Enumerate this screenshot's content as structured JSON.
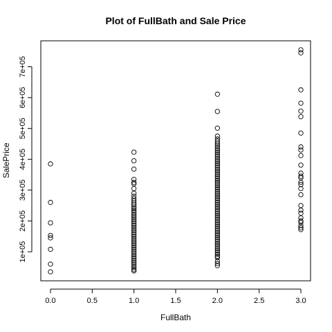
{
  "chart_data": {
    "type": "scatter",
    "title": "Plot of FullBath and Sale Price",
    "xlabel": "FullBath",
    "ylabel": "SalePrice",
    "xlim": [
      0,
      3
    ],
    "ylim": [
      35000,
      755000
    ],
    "x_ticks": [
      0.0,
      0.5,
      1.0,
      1.5,
      2.0,
      2.5,
      3.0
    ],
    "x_tick_labels": [
      "0.0",
      "0.5",
      "1.0",
      "1.5",
      "2.0",
      "2.5",
      "3.0"
    ],
    "y_ticks": [
      100000,
      200000,
      300000,
      400000,
      500000,
      600000,
      700000
    ],
    "y_tick_labels": [
      "1e+05",
      "2e+05",
      "3e+05",
      "4e+05",
      "5e+05",
      "6e+05",
      "7e+05"
    ],
    "grid": false,
    "legend": "none",
    "marker": "open-circle",
    "points": [
      {
        "x": 0,
        "y": 385000
      },
      {
        "x": 0,
        "y": 260000
      },
      {
        "x": 0,
        "y": 194000
      },
      {
        "x": 0,
        "y": 153000
      },
      {
        "x": 0,
        "y": 145000
      },
      {
        "x": 0,
        "y": 108000
      },
      {
        "x": 0,
        "y": 60000
      },
      {
        "x": 0,
        "y": 35000
      },
      {
        "x": 1,
        "y": 423000
      },
      {
        "x": 1,
        "y": 395000
      },
      {
        "x": 1,
        "y": 368000
      },
      {
        "x": 1,
        "y": 335000
      },
      {
        "x": 1,
        "y": 325000
      },
      {
        "x": 1,
        "y": 320000
      },
      {
        "x": 1,
        "y": 305000
      },
      {
        "x": 1,
        "y": 290000
      },
      {
        "x": 1,
        "y": 280000
      },
      {
        "x": 1,
        "y": 272000
      },
      {
        "x": 1,
        "y": 265000
      },
      {
        "x": 1,
        "y": 258000
      },
      {
        "x": 1,
        "y": 252000
      },
      {
        "x": 1,
        "y": 245000
      },
      {
        "x": 1,
        "y": 240000
      },
      {
        "x": 1,
        "y": 234000
      },
      {
        "x": 1,
        "y": 228000
      },
      {
        "x": 1,
        "y": 222000
      },
      {
        "x": 1,
        "y": 216000
      },
      {
        "x": 1,
        "y": 210000
      },
      {
        "x": 1,
        "y": 204000
      },
      {
        "x": 1,
        "y": 198000
      },
      {
        "x": 1,
        "y": 192000
      },
      {
        "x": 1,
        "y": 186000
      },
      {
        "x": 1,
        "y": 180000
      },
      {
        "x": 1,
        "y": 174000
      },
      {
        "x": 1,
        "y": 168000
      },
      {
        "x": 1,
        "y": 162000
      },
      {
        "x": 1,
        "y": 156000
      },
      {
        "x": 1,
        "y": 150000
      },
      {
        "x": 1,
        "y": 144000
      },
      {
        "x": 1,
        "y": 138000
      },
      {
        "x": 1,
        "y": 132000
      },
      {
        "x": 1,
        "y": 126000
      },
      {
        "x": 1,
        "y": 120000
      },
      {
        "x": 1,
        "y": 114000
      },
      {
        "x": 1,
        "y": 108000
      },
      {
        "x": 1,
        "y": 102000
      },
      {
        "x": 1,
        "y": 96000
      },
      {
        "x": 1,
        "y": 90000
      },
      {
        "x": 1,
        "y": 84000
      },
      {
        "x": 1,
        "y": 78000
      },
      {
        "x": 1,
        "y": 72000
      },
      {
        "x": 1,
        "y": 66000
      },
      {
        "x": 1,
        "y": 60000
      },
      {
        "x": 1,
        "y": 54000
      },
      {
        "x": 1,
        "y": 48000
      },
      {
        "x": 1,
        "y": 42000
      },
      {
        "x": 1,
        "y": 38000
      },
      {
        "x": 2,
        "y": 611000
      },
      {
        "x": 2,
        "y": 555000
      },
      {
        "x": 2,
        "y": 501000
      },
      {
        "x": 2,
        "y": 475000
      },
      {
        "x": 2,
        "y": 466000
      },
      {
        "x": 2,
        "y": 459000
      },
      {
        "x": 2,
        "y": 452000
      },
      {
        "x": 2,
        "y": 446000
      },
      {
        "x": 2,
        "y": 440000
      },
      {
        "x": 2,
        "y": 434000
      },
      {
        "x": 2,
        "y": 428000
      },
      {
        "x": 2,
        "y": 422000
      },
      {
        "x": 2,
        "y": 416000
      },
      {
        "x": 2,
        "y": 410000
      },
      {
        "x": 2,
        "y": 404000
      },
      {
        "x": 2,
        "y": 398000
      },
      {
        "x": 2,
        "y": 392000
      },
      {
        "x": 2,
        "y": 386000
      },
      {
        "x": 2,
        "y": 380000
      },
      {
        "x": 2,
        "y": 374000
      },
      {
        "x": 2,
        "y": 368000
      },
      {
        "x": 2,
        "y": 362000
      },
      {
        "x": 2,
        "y": 356000
      },
      {
        "x": 2,
        "y": 350000
      },
      {
        "x": 2,
        "y": 344000
      },
      {
        "x": 2,
        "y": 338000
      },
      {
        "x": 2,
        "y": 332000
      },
      {
        "x": 2,
        "y": 326000
      },
      {
        "x": 2,
        "y": 320000
      },
      {
        "x": 2,
        "y": 314000
      },
      {
        "x": 2,
        "y": 308000
      },
      {
        "x": 2,
        "y": 302000
      },
      {
        "x": 2,
        "y": 296000
      },
      {
        "x": 2,
        "y": 290000
      },
      {
        "x": 2,
        "y": 284000
      },
      {
        "x": 2,
        "y": 278000
      },
      {
        "x": 2,
        "y": 272000
      },
      {
        "x": 2,
        "y": 266000
      },
      {
        "x": 2,
        "y": 260000
      },
      {
        "x": 2,
        "y": 254000
      },
      {
        "x": 2,
        "y": 248000
      },
      {
        "x": 2,
        "y": 242000
      },
      {
        "x": 2,
        "y": 236000
      },
      {
        "x": 2,
        "y": 230000
      },
      {
        "x": 2,
        "y": 224000
      },
      {
        "x": 2,
        "y": 218000
      },
      {
        "x": 2,
        "y": 212000
      },
      {
        "x": 2,
        "y": 206000
      },
      {
        "x": 2,
        "y": 200000
      },
      {
        "x": 2,
        "y": 194000
      },
      {
        "x": 2,
        "y": 188000
      },
      {
        "x": 2,
        "y": 182000
      },
      {
        "x": 2,
        "y": 176000
      },
      {
        "x": 2,
        "y": 170000
      },
      {
        "x": 2,
        "y": 164000
      },
      {
        "x": 2,
        "y": 158000
      },
      {
        "x": 2,
        "y": 152000
      },
      {
        "x": 2,
        "y": 146000
      },
      {
        "x": 2,
        "y": 140000
      },
      {
        "x": 2,
        "y": 134000
      },
      {
        "x": 2,
        "y": 128000
      },
      {
        "x": 2,
        "y": 122000
      },
      {
        "x": 2,
        "y": 116000
      },
      {
        "x": 2,
        "y": 110000
      },
      {
        "x": 2,
        "y": 104000
      },
      {
        "x": 2,
        "y": 98000
      },
      {
        "x": 2,
        "y": 92000
      },
      {
        "x": 2,
        "y": 86000
      },
      {
        "x": 2,
        "y": 81000
      },
      {
        "x": 2,
        "y": 70000
      },
      {
        "x": 2,
        "y": 62000
      },
      {
        "x": 2,
        "y": 55000
      },
      {
        "x": 3,
        "y": 755000
      },
      {
        "x": 3,
        "y": 745000
      },
      {
        "x": 3,
        "y": 625000
      },
      {
        "x": 3,
        "y": 582000
      },
      {
        "x": 3,
        "y": 556000
      },
      {
        "x": 3,
        "y": 538000
      },
      {
        "x": 3,
        "y": 485000
      },
      {
        "x": 3,
        "y": 440000
      },
      {
        "x": 3,
        "y": 430000
      },
      {
        "x": 3,
        "y": 412000
      },
      {
        "x": 3,
        "y": 381000
      },
      {
        "x": 3,
        "y": 355000
      },
      {
        "x": 3,
        "y": 345000
      },
      {
        "x": 3,
        "y": 340000
      },
      {
        "x": 3,
        "y": 325000
      },
      {
        "x": 3,
        "y": 318000
      },
      {
        "x": 3,
        "y": 305000
      },
      {
        "x": 3,
        "y": 285000
      },
      {
        "x": 3,
        "y": 250000
      },
      {
        "x": 3,
        "y": 235000
      },
      {
        "x": 3,
        "y": 225000
      },
      {
        "x": 3,
        "y": 210000
      },
      {
        "x": 3,
        "y": 200000
      },
      {
        "x": 3,
        "y": 195000
      },
      {
        "x": 3,
        "y": 185000
      },
      {
        "x": 3,
        "y": 178000
      },
      {
        "x": 3,
        "y": 172000
      }
    ]
  }
}
